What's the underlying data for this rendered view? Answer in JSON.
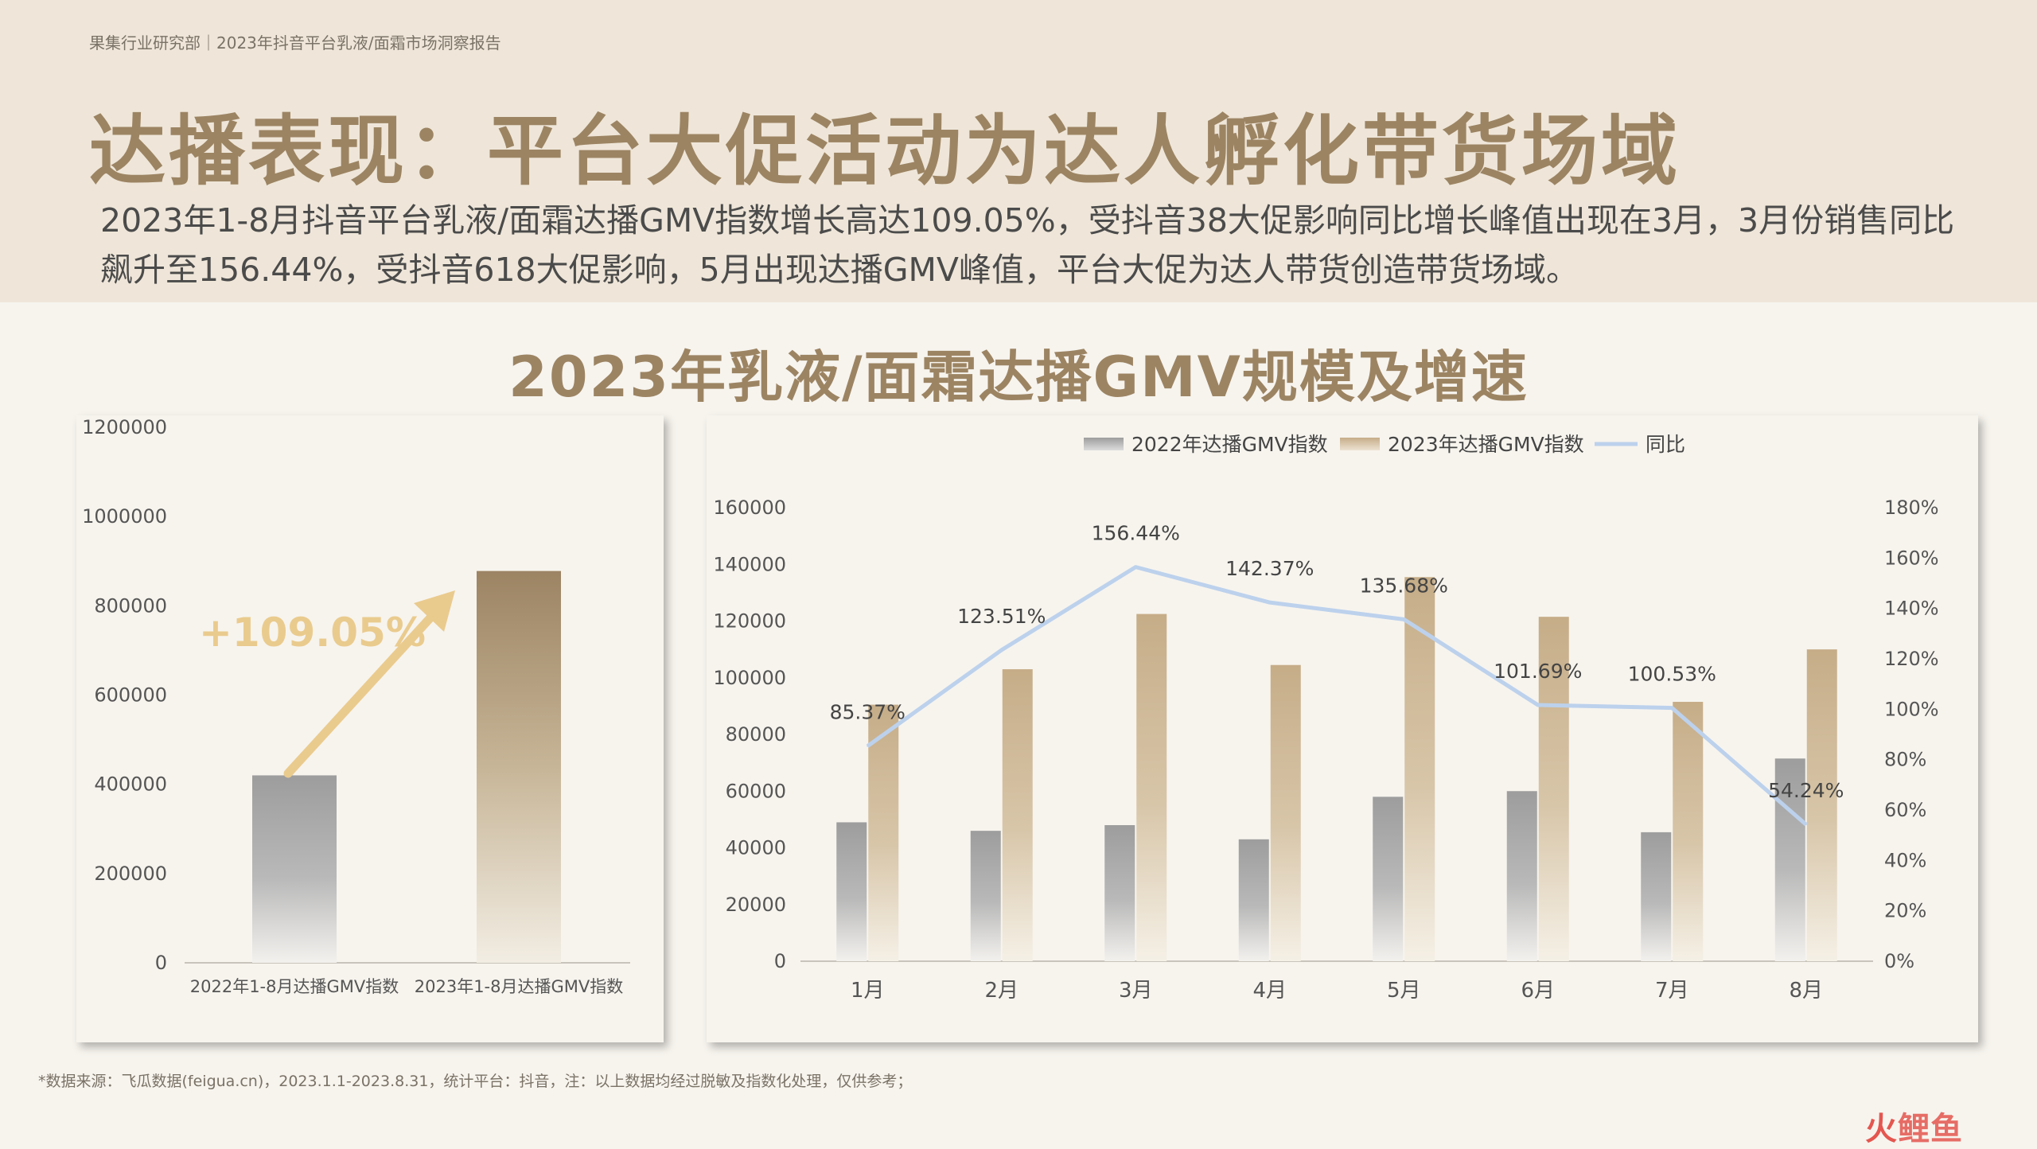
{
  "header": {
    "breadcrumb": "果集行业研究部｜2023年抖音平台乳液/面霜市场洞察报告",
    "title": "达播表现：平台大促活动为达人孵化带货场域",
    "summary": "2023年1-8月抖音平台乳液/面霜达播GMV指数增长高达109.05%，受抖音38大促影响同比增长峰值出现在3月，3月份销售同比飙升至156.44%，受抖音618大促影响，5月出现达播GMV峰值，平台大促为达人带货创造带货场域。"
  },
  "chart_title": "2023年乳液/面霜达播GMV规模及增速",
  "colors": {
    "accent": "#9c8463",
    "gray_bar": "#9d9d9d",
    "gold_bar": "#c8b08c",
    "line": "#bcd1ec",
    "arrow": "#eacb8e"
  },
  "chart_data": [
    {
      "type": "bar",
      "categories": [
        "2022年1-8月达播GMV指数",
        "2023年1-8月达播GMV指数"
      ],
      "values": [
        420000,
        878000
      ],
      "ylim": [
        0,
        1200000
      ],
      "yticks": [
        "0",
        "200000",
        "400000",
        "600000",
        "800000",
        "1000000",
        "1200000"
      ],
      "annotation": "+109.05%"
    },
    {
      "type": "bar+line",
      "categories": [
        "1月",
        "2月",
        "3月",
        "4月",
        "5月",
        "6月",
        "7月",
        "8月"
      ],
      "series": [
        {
          "name": "2022年达播GMV指数",
          "values": [
            49000,
            46000,
            48000,
            43000,
            58000,
            60000,
            45500,
            71500
          ]
        },
        {
          "name": "2023年达播GMV指数",
          "values": [
            90500,
            103000,
            122500,
            104500,
            135500,
            121500,
            91500,
            110000
          ]
        },
        {
          "name": "同比",
          "values": [
            85.37,
            123.51,
            156.44,
            142.37,
            135.68,
            101.69,
            100.53,
            54.24
          ],
          "labels": [
            "85.37%",
            "123.51%",
            "156.44%",
            "142.37%",
            "135.68%",
            "101.69%",
            "100.53%",
            "54.24%"
          ]
        }
      ],
      "ylim": [
        0,
        160000
      ],
      "yticks": [
        "0",
        "20000",
        "40000",
        "60000",
        "80000",
        "100000",
        "120000",
        "140000",
        "160000"
      ],
      "y2lim": [
        0,
        180
      ],
      "y2ticks": [
        "0%",
        "20%",
        "40%",
        "60%",
        "80%",
        "100%",
        "120%",
        "140%",
        "160%",
        "180%"
      ],
      "legend": "top"
    }
  ],
  "footnote": "*数据来源：飞瓜数据(feigua.cn)，2023.1.1-2023.8.31，统计平台：抖音，注：以上数据均经过脱敏及指数化处理，仅供参考；",
  "logo": {
    "text1": "火",
    "text2": "鲤鱼"
  }
}
